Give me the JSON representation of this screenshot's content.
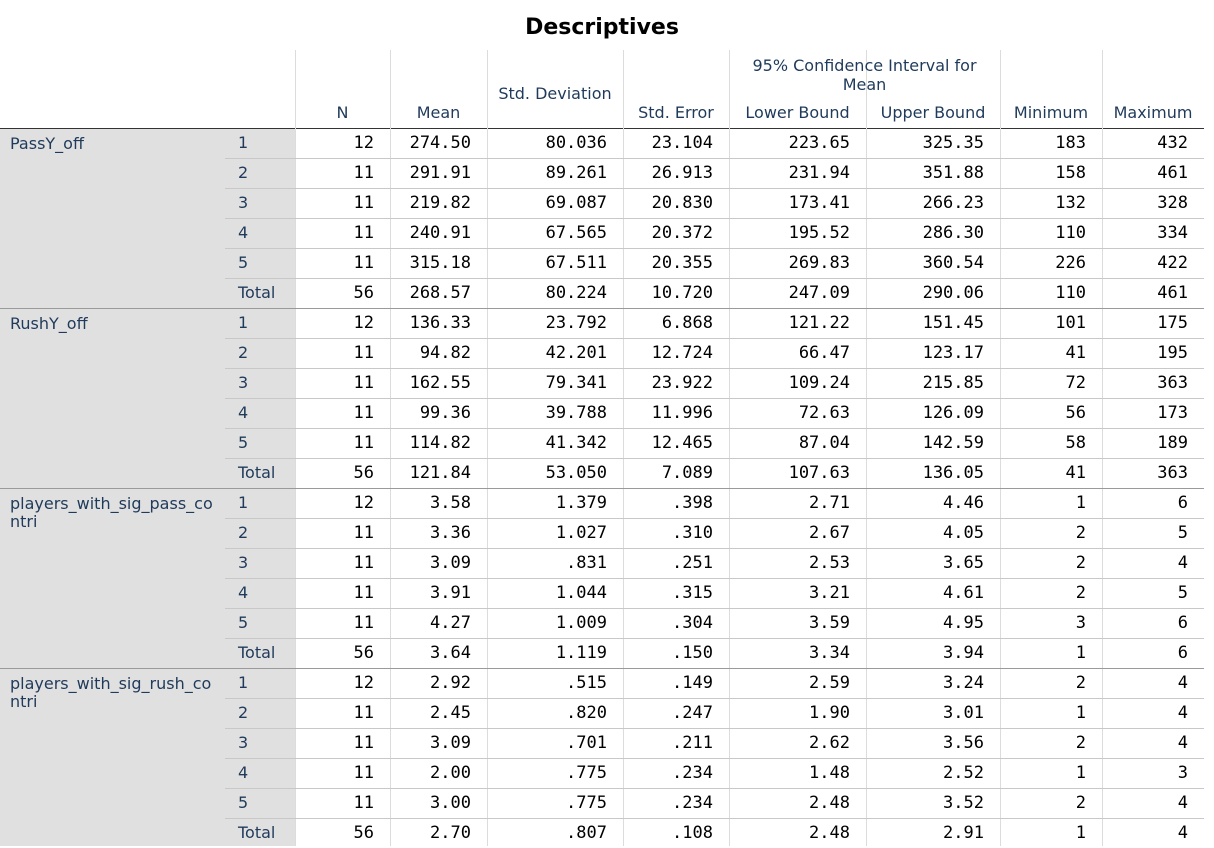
{
  "title": "Descriptives",
  "header": {
    "ci_group": "95% Confidence Interval for Mean",
    "columns": [
      "N",
      "Mean",
      "Std. Deviation",
      "Std. Error",
      "Lower Bound",
      "Upper Bound",
      "Minimum",
      "Maximum"
    ]
  },
  "variables": [
    {
      "name": "PassY_off",
      "rows": [
        {
          "group": "1",
          "values": [
            "12",
            "274.50",
            "80.036",
            "23.104",
            "223.65",
            "325.35",
            "183",
            "432"
          ]
        },
        {
          "group": "2",
          "values": [
            "11",
            "291.91",
            "89.261",
            "26.913",
            "231.94",
            "351.88",
            "158",
            "461"
          ]
        },
        {
          "group": "3",
          "values": [
            "11",
            "219.82",
            "69.087",
            "20.830",
            "173.41",
            "266.23",
            "132",
            "328"
          ]
        },
        {
          "group": "4",
          "values": [
            "11",
            "240.91",
            "67.565",
            "20.372",
            "195.52",
            "286.30",
            "110",
            "334"
          ]
        },
        {
          "group": "5",
          "values": [
            "11",
            "315.18",
            "67.511",
            "20.355",
            "269.83",
            "360.54",
            "226",
            "422"
          ]
        },
        {
          "group": "Total",
          "values": [
            "56",
            "268.57",
            "80.224",
            "10.720",
            "247.09",
            "290.06",
            "110",
            "461"
          ]
        }
      ]
    },
    {
      "name": "RushY_off",
      "rows": [
        {
          "group": "1",
          "values": [
            "12",
            "136.33",
            "23.792",
            "6.868",
            "121.22",
            "151.45",
            "101",
            "175"
          ]
        },
        {
          "group": "2",
          "values": [
            "11",
            "94.82",
            "42.201",
            "12.724",
            "66.47",
            "123.17",
            "41",
            "195"
          ]
        },
        {
          "group": "3",
          "values": [
            "11",
            "162.55",
            "79.341",
            "23.922",
            "109.24",
            "215.85",
            "72",
            "363"
          ]
        },
        {
          "group": "4",
          "values": [
            "11",
            "99.36",
            "39.788",
            "11.996",
            "72.63",
            "126.09",
            "56",
            "173"
          ]
        },
        {
          "group": "5",
          "values": [
            "11",
            "114.82",
            "41.342",
            "12.465",
            "87.04",
            "142.59",
            "58",
            "189"
          ]
        },
        {
          "group": "Total",
          "values": [
            "56",
            "121.84",
            "53.050",
            "7.089",
            "107.63",
            "136.05",
            "41",
            "363"
          ]
        }
      ]
    },
    {
      "name": "players_with_sig_pass_contri",
      "rows": [
        {
          "group": "1",
          "values": [
            "12",
            "3.58",
            "1.379",
            ".398",
            "2.71",
            "4.46",
            "1",
            "6"
          ]
        },
        {
          "group": "2",
          "values": [
            "11",
            "3.36",
            "1.027",
            ".310",
            "2.67",
            "4.05",
            "2",
            "5"
          ]
        },
        {
          "group": "3",
          "values": [
            "11",
            "3.09",
            ".831",
            ".251",
            "2.53",
            "3.65",
            "2",
            "4"
          ]
        },
        {
          "group": "4",
          "values": [
            "11",
            "3.91",
            "1.044",
            ".315",
            "3.21",
            "4.61",
            "2",
            "5"
          ]
        },
        {
          "group": "5",
          "values": [
            "11",
            "4.27",
            "1.009",
            ".304",
            "3.59",
            "4.95",
            "3",
            "6"
          ]
        },
        {
          "group": "Total",
          "values": [
            "56",
            "3.64",
            "1.119",
            ".150",
            "3.34",
            "3.94",
            "1",
            "6"
          ]
        }
      ]
    },
    {
      "name": "players_with_sig_rush_contri",
      "rows": [
        {
          "group": "1",
          "values": [
            "12",
            "2.92",
            ".515",
            ".149",
            "2.59",
            "3.24",
            "2",
            "4"
          ]
        },
        {
          "group": "2",
          "values": [
            "11",
            "2.45",
            ".820",
            ".247",
            "1.90",
            "3.01",
            "1",
            "4"
          ]
        },
        {
          "group": "3",
          "values": [
            "11",
            "3.09",
            ".701",
            ".211",
            "2.62",
            "3.56",
            "2",
            "4"
          ]
        },
        {
          "group": "4",
          "values": [
            "11",
            "2.00",
            ".775",
            ".234",
            "1.48",
            "2.52",
            "1",
            "3"
          ]
        },
        {
          "group": "5",
          "values": [
            "11",
            "3.00",
            ".775",
            ".234",
            "2.48",
            "3.52",
            "2",
            "4"
          ]
        },
        {
          "group": "Total",
          "values": [
            "56",
            "2.70",
            ".807",
            ".108",
            "2.48",
            "2.91",
            "1",
            "4"
          ]
        }
      ]
    }
  ]
}
